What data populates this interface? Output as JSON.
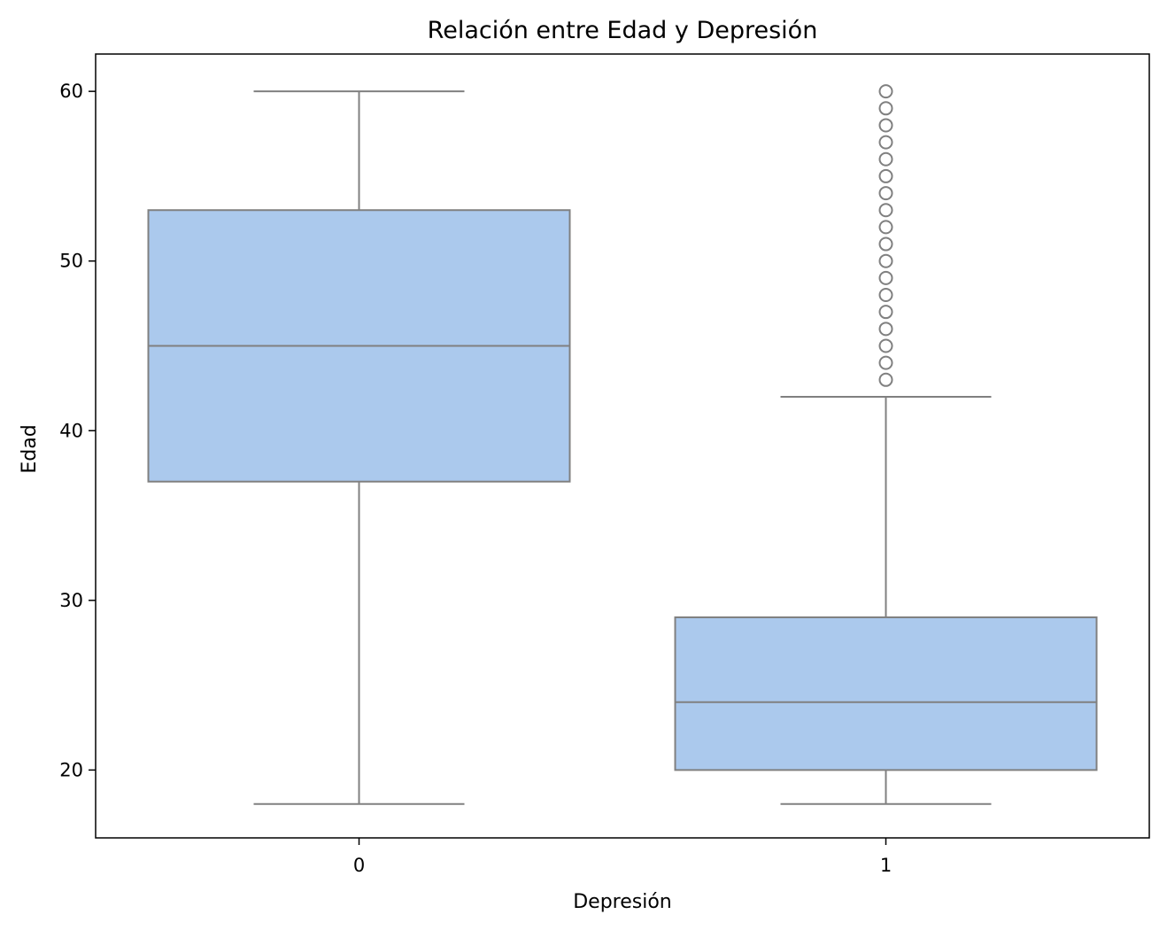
{
  "chart_data": {
    "type": "boxplot",
    "title": "Relación entre Edad y Depresión",
    "xlabel": "Depresión",
    "ylabel": "Edad",
    "categories": [
      "0",
      "1"
    ],
    "ylim": [
      16,
      62.2
    ],
    "yticks": [
      20,
      30,
      40,
      50,
      60
    ],
    "grid": false,
    "box_color": "#abc9ed",
    "line_color": "#808080",
    "boxes": [
      {
        "category": "0",
        "whisker_low": 18,
        "q1": 37,
        "median": 45,
        "q3": 53,
        "whisker_high": 60,
        "outliers": []
      },
      {
        "category": "1",
        "whisker_low": 18,
        "q1": 20,
        "median": 24,
        "q3": 29,
        "whisker_high": 42,
        "outliers": [
          43,
          44,
          45,
          46,
          47,
          48,
          49,
          50,
          51,
          52,
          53,
          54,
          55,
          56,
          57,
          58,
          59,
          60
        ]
      }
    ]
  }
}
